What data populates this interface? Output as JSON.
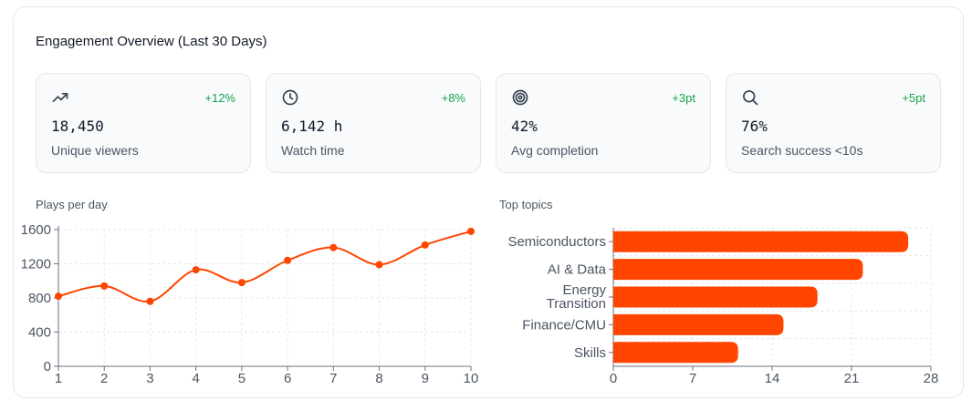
{
  "card": {
    "title": "Engagement Overview (Last 30 Days)"
  },
  "kpis": [
    {
      "icon": "trending-up-icon",
      "value": "18,450",
      "label": "Unique viewers",
      "delta": "+12%"
    },
    {
      "icon": "clock-icon",
      "value": "6,142 h",
      "label": "Watch time",
      "delta": "+8%"
    },
    {
      "icon": "target-icon",
      "value": "42%",
      "label": "Avg completion",
      "delta": "+3pt"
    },
    {
      "icon": "search-icon",
      "value": "76%",
      "label": "Search success <10s",
      "delta": "+5pt"
    }
  ],
  "colors": {
    "accent": "#ff4500",
    "positive": "#16a34a",
    "grid": "#e5e7eb"
  },
  "chart_data": [
    {
      "type": "line",
      "title": "Plays per day",
      "x": [
        1,
        2,
        3,
        4,
        5,
        6,
        7,
        8,
        9,
        10
      ],
      "y": [
        820,
        940,
        760,
        1130,
        980,
        1240,
        1390,
        1190,
        1420,
        1580
      ],
      "ylim": [
        0,
        1600
      ],
      "yticks": [
        0,
        400,
        800,
        1200,
        1600
      ],
      "xlabel": "",
      "ylabel": "",
      "grid": true
    },
    {
      "type": "bar",
      "orientation": "horizontal",
      "title": "Top topics",
      "categories": [
        "Semiconductors",
        "AI & Data",
        "Energy Transition",
        "Finance/CMU",
        "Skills"
      ],
      "values": [
        26,
        22,
        18,
        15,
        11
      ],
      "xlim": [
        0,
        28
      ],
      "xticks": [
        0,
        7,
        14,
        21,
        28
      ],
      "grid": true
    }
  ]
}
